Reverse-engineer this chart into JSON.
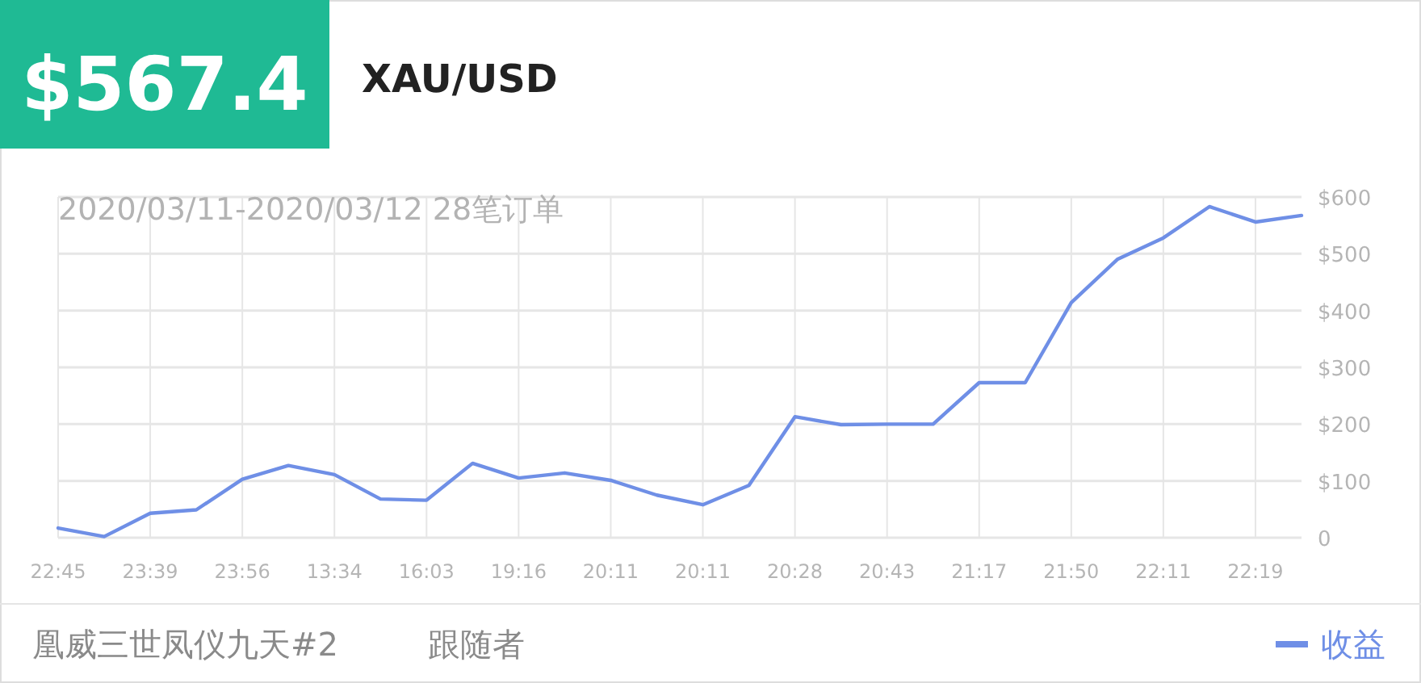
{
  "chart_data": {
    "type": "line",
    "title": "XAU/USD",
    "subtitle": "2020/03/11-2020/03/12 28笔订单",
    "annotations": [
      "$567.4",
      "凰威三世凤仪九天#2",
      "跟随者"
    ],
    "categories": [
      "22:45",
      null,
      "23:39",
      null,
      "23:56",
      null,
      "13:34",
      null,
      "16:03",
      null,
      "19:16",
      null,
      "20:11",
      null,
      "20:11",
      null,
      "20:28",
      null,
      "20:43",
      null,
      "21:17",
      null,
      "21:50",
      null,
      "22:11",
      null,
      "22:19",
      null
    ],
    "series": [
      {
        "name": "收益",
        "color": "#6f8fe6",
        "values": [
          17,
          2,
          43,
          49,
          103,
          127,
          111,
          68,
          66,
          131,
          105,
          114,
          101,
          75,
          58,
          92,
          213,
          199,
          200,
          200,
          273,
          273,
          414,
          490,
          528,
          583,
          556,
          567.4
        ]
      }
    ],
    "ylim": [
      0,
      600
    ],
    "yticks": [
      0,
      {
        "value": 100,
        "label": "$100"
      },
      {
        "value": 200,
        "label": "$200"
      },
      {
        "value": 300,
        "label": "$300"
      },
      {
        "value": 400,
        "label": "$400"
      },
      {
        "value": 500,
        "label": "$500"
      },
      {
        "value": 600,
        "label": "$600"
      }
    ],
    "grid": true,
    "legend": "bottom right"
  }
}
